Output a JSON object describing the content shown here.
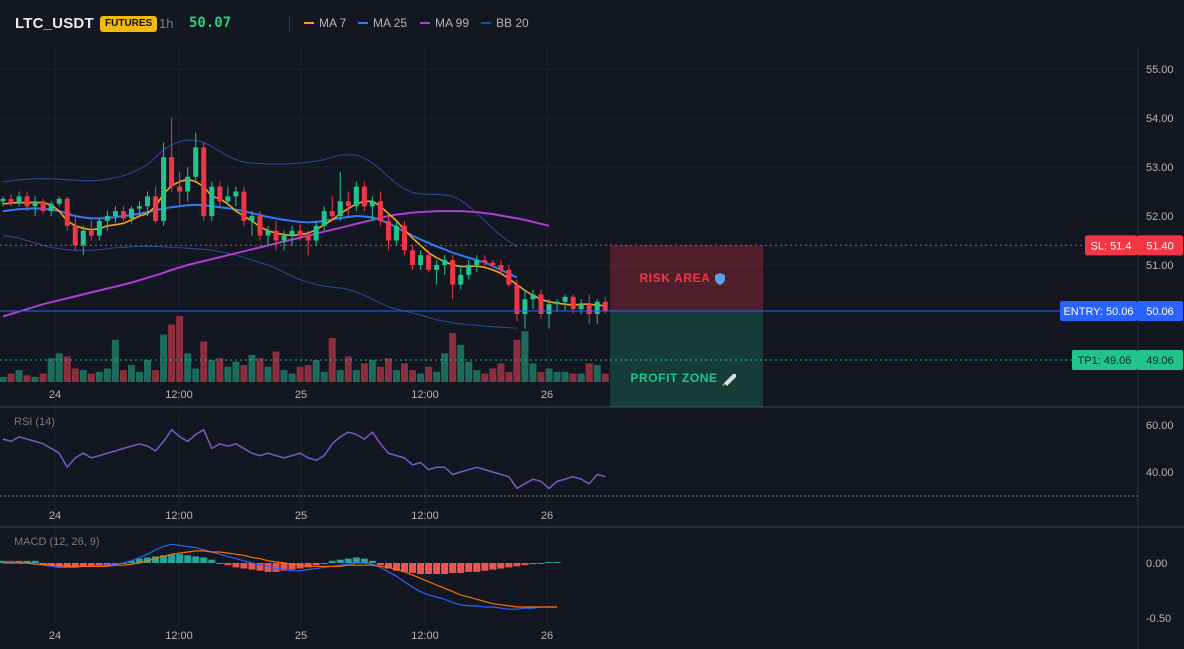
{
  "header": {
    "symbol": "LTC_USDT",
    "badge": "FUTURES",
    "timeframe": "1h",
    "last_price": "50.07",
    "legend": [
      {
        "label": "MA 7",
        "color": "#f7a21b"
      },
      {
        "label": "MA 25",
        "color": "#2f7bf5"
      },
      {
        "label": "MA 99",
        "color": "#b03dd4"
      },
      {
        "label": "BB 20",
        "color": "#2a4b9b"
      }
    ]
  },
  "colors": {
    "up": "#22c48d",
    "down": "#f23645",
    "vol_up": "#1d6b5c",
    "vol_down": "#8c2e3d",
    "grid": "#1e222d",
    "axis_text": "#b2b5be",
    "rsi": "#7e57c2",
    "macd": "#2962ff",
    "signal": "#ff6d00",
    "entry": "#2962ff",
    "sl": "#f23645",
    "tp": "#22c48d"
  },
  "chart_data": [
    {
      "type": "candlestick",
      "title": "",
      "x_ticks": [
        "24",
        "12:00",
        "25",
        "12:00",
        "26"
      ],
      "y_ticks": [
        "55.00",
        "54.00",
        "53.00",
        "52.00",
        "51.00",
        "50.00"
      ],
      "ylim": [
        49.0,
        55.5
      ],
      "candles": [
        [
          52.3,
          52.4,
          52.2,
          52.35
        ],
        [
          52.35,
          52.45,
          52.2,
          52.25
        ],
        [
          52.25,
          52.5,
          52.2,
          52.4
        ],
        [
          52.4,
          52.5,
          52.1,
          52.2
        ],
        [
          52.2,
          52.4,
          52.0,
          52.3
        ],
        [
          52.3,
          52.35,
          52.05,
          52.1
        ],
        [
          52.1,
          52.3,
          52.0,
          52.25
        ],
        [
          52.25,
          52.4,
          52.2,
          52.35
        ],
        [
          52.35,
          52.4,
          51.7,
          51.8
        ],
        [
          51.8,
          52.0,
          51.3,
          51.4
        ],
        [
          51.4,
          51.8,
          51.2,
          51.7
        ],
        [
          51.7,
          51.9,
          51.5,
          51.6
        ],
        [
          51.6,
          51.95,
          51.5,
          51.9
        ],
        [
          51.9,
          52.1,
          51.7,
          52.0
        ],
        [
          52.0,
          52.2,
          51.85,
          52.1
        ],
        [
          52.1,
          52.2,
          51.9,
          51.95
        ],
        [
          51.95,
          52.2,
          51.85,
          52.15
        ],
        [
          52.15,
          52.3,
          52.0,
          52.2
        ],
        [
          52.2,
          52.5,
          52.0,
          52.4
        ],
        [
          52.4,
          52.6,
          51.85,
          51.9
        ],
        [
          51.9,
          53.5,
          51.8,
          53.2
        ],
        [
          53.2,
          54.0,
          52.5,
          52.6
        ],
        [
          52.6,
          52.9,
          52.2,
          52.5
        ],
        [
          52.5,
          53.0,
          52.3,
          52.8
        ],
        [
          52.8,
          53.7,
          52.7,
          53.4
        ],
        [
          53.4,
          53.5,
          51.9,
          52.0
        ],
        [
          52.0,
          52.7,
          51.9,
          52.6
        ],
        [
          52.6,
          52.7,
          52.2,
          52.3
        ],
        [
          52.3,
          52.6,
          52.2,
          52.4
        ],
        [
          52.4,
          52.6,
          52.2,
          52.5
        ],
        [
          52.5,
          52.6,
          51.8,
          51.9
        ],
        [
          51.9,
          52.1,
          51.6,
          52.0
        ],
        [
          52.0,
          52.1,
          51.5,
          51.6
        ],
        [
          51.6,
          51.8,
          51.4,
          51.7
        ],
        [
          51.7,
          51.9,
          51.3,
          51.5
        ],
        [
          51.5,
          51.7,
          51.3,
          51.6
        ],
        [
          51.6,
          51.8,
          51.4,
          51.7
        ],
        [
          51.7,
          51.85,
          51.5,
          51.6
        ],
        [
          51.6,
          51.7,
          51.2,
          51.5
        ],
        [
          51.5,
          51.9,
          51.4,
          51.8
        ],
        [
          51.8,
          52.2,
          51.7,
          52.1
        ],
        [
          52.1,
          52.4,
          51.9,
          52.0
        ],
        [
          52.0,
          52.9,
          51.9,
          52.3
        ],
        [
          52.3,
          52.5,
          52.0,
          52.2
        ],
        [
          52.2,
          52.7,
          52.1,
          52.6
        ],
        [
          52.6,
          52.7,
          52.1,
          52.2
        ],
        [
          52.2,
          52.4,
          51.9,
          52.3
        ],
        [
          52.3,
          52.5,
          51.8,
          51.9
        ],
        [
          51.9,
          52.0,
          51.3,
          51.5
        ],
        [
          51.5,
          51.9,
          51.4,
          51.8
        ],
        [
          51.8,
          51.9,
          51.2,
          51.3
        ],
        [
          51.3,
          51.4,
          50.9,
          51.0
        ],
        [
          51.0,
          51.3,
          50.9,
          51.2
        ],
        [
          51.2,
          51.3,
          50.85,
          50.9
        ],
        [
          50.9,
          51.1,
          50.6,
          51.0
        ],
        [
          51.0,
          51.2,
          50.8,
          51.1
        ],
        [
          51.1,
          51.2,
          50.3,
          50.6
        ],
        [
          50.6,
          51.0,
          50.5,
          50.8
        ],
        [
          50.8,
          51.1,
          50.7,
          51.0
        ],
        [
          51.0,
          51.2,
          50.85,
          51.1
        ],
        [
          51.1,
          51.2,
          50.95,
          51.05
        ],
        [
          51.05,
          51.1,
          50.95,
          51.0
        ],
        [
          51.0,
          51.1,
          50.8,
          50.9
        ],
        [
          50.9,
          51.0,
          50.55,
          50.6
        ],
        [
          50.6,
          50.7,
          49.85,
          50.0
        ],
        [
          50.0,
          50.5,
          49.7,
          50.3
        ],
        [
          50.3,
          50.5,
          50.1,
          50.4
        ],
        [
          50.4,
          50.5,
          49.9,
          50.0
        ],
        [
          50.0,
          50.3,
          49.7,
          50.2
        ],
        [
          50.2,
          50.3,
          50.05,
          50.25
        ],
        [
          50.25,
          50.4,
          50.05,
          50.35
        ],
        [
          50.35,
          50.4,
          50.0,
          50.1
        ],
        [
          50.1,
          50.3,
          50.0,
          50.2
        ],
        [
          50.2,
          50.4,
          49.8,
          50.0
        ],
        [
          50.0,
          50.3,
          49.8,
          50.25
        ],
        [
          50.25,
          50.35,
          50.0,
          50.07
        ]
      ],
      "ma7": [
        52.25,
        52.26,
        52.28,
        52.27,
        52.28,
        52.27,
        52.23,
        52.1,
        51.9,
        51.8,
        51.75,
        51.72,
        51.74,
        51.8,
        51.82,
        51.85,
        51.92,
        52.0,
        52.05,
        52.2,
        52.45,
        52.62,
        52.7,
        52.75,
        52.7,
        52.6,
        52.4,
        52.35,
        52.25,
        52.1,
        52.0,
        51.9,
        51.78,
        51.7,
        51.65,
        51.62,
        51.6,
        51.62,
        51.65,
        51.72,
        51.82,
        51.92,
        52.05,
        52.15,
        52.25,
        52.3,
        52.3,
        52.2,
        52.05,
        51.9,
        51.72,
        51.55,
        51.4,
        51.25,
        51.15,
        51.07,
        51.0,
        50.97,
        50.97,
        50.98,
        50.95,
        50.9,
        50.83,
        50.72,
        50.6,
        50.48,
        50.38,
        50.3,
        50.25,
        50.22,
        50.2,
        50.18,
        50.2,
        50.2,
        50.18,
        50.17
      ],
      "ma25": [
        52.1,
        52.12,
        52.14,
        52.15,
        52.16,
        52.15,
        52.13,
        52.1,
        52.05,
        52.0,
        51.97,
        51.95,
        51.95,
        51.96,
        51.98,
        52.0,
        52.02,
        52.05,
        52.08,
        52.12,
        52.15,
        52.18,
        52.2,
        52.22,
        52.23,
        52.22,
        52.2,
        52.18,
        52.16,
        52.13,
        52.1,
        52.06,
        52.02,
        51.98,
        51.95,
        51.92,
        51.9,
        51.88,
        51.87,
        51.88,
        51.9,
        51.93,
        51.96,
        51.98,
        52.0,
        51.99,
        51.97,
        51.92,
        51.85,
        51.77,
        51.68,
        51.6,
        51.52,
        51.45,
        51.38,
        51.32,
        51.25,
        51.2,
        51.15,
        51.1,
        51.05,
        50.98,
        50.9,
        50.82,
        50.75
      ],
      "ma99": [
        49.95,
        50.0,
        50.05,
        50.1,
        50.15,
        50.2,
        50.24,
        50.28,
        50.32,
        50.36,
        50.4,
        50.44,
        50.48,
        50.52,
        50.56,
        50.6,
        50.64,
        50.69,
        50.74,
        50.79,
        50.84,
        50.9,
        50.95,
        51.0,
        51.04,
        51.08,
        51.12,
        51.16,
        51.2,
        51.24,
        51.28,
        51.32,
        51.36,
        51.4,
        51.44,
        51.48,
        51.52,
        51.56,
        51.6,
        51.64,
        51.68,
        51.72,
        51.76,
        51.8,
        51.84,
        51.88,
        51.92,
        51.96,
        52.0,
        52.03,
        52.05,
        52.07,
        52.08,
        52.09,
        52.1,
        52.1,
        52.1,
        52.1,
        52.09,
        52.08,
        52.06,
        52.04,
        52.01,
        51.98,
        51.95,
        51.92,
        51.88,
        51.84,
        51.8
      ],
      "bb_upper": [
        52.7,
        52.72,
        52.74,
        52.75,
        52.76,
        52.76,
        52.76,
        52.75,
        52.74,
        52.73,
        52.72,
        52.72,
        52.73,
        52.75,
        52.78,
        52.82,
        52.88,
        52.96,
        53.05,
        53.2,
        53.35,
        53.45,
        53.52,
        53.55,
        53.54,
        53.5,
        53.42,
        53.32,
        53.22,
        53.15,
        53.1,
        53.08,
        53.07,
        53.06,
        53.06,
        53.06,
        53.07,
        53.08,
        53.1,
        53.12,
        53.15,
        53.2,
        53.24,
        53.25,
        53.24,
        53.18,
        53.08,
        52.95,
        52.8,
        52.66,
        52.55,
        52.48,
        52.45,
        52.44,
        52.44,
        52.43,
        52.4,
        52.32,
        52.2,
        52.05,
        51.9,
        51.75,
        51.6,
        51.48,
        51.37
      ],
      "bb_lower": [
        51.6,
        51.58,
        51.55,
        51.5,
        51.45,
        51.4,
        51.36,
        51.33,
        51.31,
        51.3,
        51.3,
        51.3,
        51.31,
        51.33,
        51.35,
        51.36,
        51.37,
        51.38,
        51.38,
        51.38,
        51.37,
        51.36,
        51.35,
        51.34,
        51.33,
        51.32,
        51.3,
        51.27,
        51.24,
        51.2,
        51.15,
        51.1,
        51.05,
        51.0,
        50.93,
        50.85,
        50.77,
        50.7,
        50.65,
        50.6,
        50.57,
        50.55,
        50.53,
        50.5,
        50.45,
        50.38,
        50.3,
        50.22,
        50.15,
        50.1,
        50.06,
        50.02,
        49.98,
        49.93,
        49.88,
        49.85,
        49.82,
        49.8,
        49.78,
        49.77,
        49.75,
        49.74,
        49.73,
        49.72,
        49.71
      ],
      "volume": [
        0.3,
        0.5,
        0.7,
        0.4,
        0.3,
        0.5,
        1.4,
        1.7,
        1.5,
        0.8,
        0.7,
        0.5,
        0.6,
        0.8,
        2.5,
        0.7,
        1.0,
        0.6,
        1.3,
        0.7,
        2.8,
        3.4,
        3.9,
        1.7,
        0.8,
        2.4,
        1.3,
        1.4,
        0.9,
        1.2,
        1.0,
        1.6,
        1.4,
        0.9,
        1.8,
        0.7,
        0.5,
        0.9,
        1.0,
        1.3,
        0.6,
        2.6,
        0.7,
        1.5,
        0.7,
        1.1,
        1.3,
        0.9,
        1.4,
        0.7,
        1.1,
        0.7,
        0.5,
        0.9,
        0.6,
        1.7,
        2.9,
        2.2,
        1.2,
        0.7,
        0.5,
        0.8,
        1.1,
        0.6,
        2.5,
        3.0,
        1.1,
        0.6,
        0.8,
        0.6,
        0.6,
        0.5,
        0.5,
        1.1,
        1.0,
        0.5
      ]
    },
    {
      "type": "line",
      "title": "RSI (14)",
      "y_ticks": [
        "60.00",
        "40.00"
      ],
      "ylim": [
        25,
        70
      ],
      "values": [
        54,
        53,
        55,
        54,
        53,
        52,
        50,
        48,
        42,
        46,
        48,
        46,
        47,
        48,
        49,
        50,
        51,
        52,
        51,
        49,
        53,
        58,
        55,
        53,
        56,
        58,
        50,
        52,
        51,
        52,
        50,
        48,
        47,
        48,
        47,
        46,
        47,
        48,
        46,
        45,
        47,
        52,
        55,
        57,
        56,
        54,
        57,
        52,
        48,
        47,
        46,
        43,
        44,
        41,
        42,
        42,
        39,
        40,
        41,
        42,
        41,
        40,
        39,
        38,
        33,
        35,
        37,
        36,
        33,
        36,
        37,
        38,
        37,
        35,
        39,
        38
      ]
    },
    {
      "type": "macd",
      "title": "MACD (12, 26, 9)",
      "y_ticks": [
        "0.00",
        "-0.50"
      ],
      "ylim": [
        -0.55,
        0.2
      ],
      "macd": [
        0.01,
        0.01,
        0.0,
        0.0,
        -0.01,
        -0.02,
        -0.03,
        -0.04,
        -0.04,
        -0.04,
        -0.03,
        -0.03,
        -0.02,
        -0.02,
        -0.01,
        0.0,
        0.02,
        0.05,
        0.08,
        0.12,
        0.15,
        0.17,
        0.16,
        0.15,
        0.14,
        0.12,
        0.1,
        0.08,
        0.06,
        0.04,
        0.02,
        0.0,
        -0.02,
        -0.03,
        -0.05,
        -0.06,
        -0.07,
        -0.07,
        -0.06,
        -0.05,
        -0.04,
        -0.03,
        -0.02,
        -0.01,
        0.0,
        0.0,
        -0.01,
        -0.04,
        -0.08,
        -0.12,
        -0.17,
        -0.22,
        -0.26,
        -0.29,
        -0.31,
        -0.33,
        -0.36,
        -0.38,
        -0.39,
        -0.39,
        -0.4,
        -0.4,
        -0.41,
        -0.42,
        -0.42,
        -0.41,
        -0.41,
        -0.4,
        -0.4,
        -0.4
      ],
      "signal": [
        0.0,
        0.0,
        0.0,
        0.0,
        -0.01,
        -0.01,
        -0.02,
        -0.02,
        -0.03,
        -0.03,
        -0.03,
        -0.03,
        -0.03,
        -0.03,
        -0.02,
        -0.02,
        -0.01,
        0.0,
        0.02,
        0.04,
        0.06,
        0.08,
        0.09,
        0.1,
        0.11,
        0.11,
        0.1,
        0.1,
        0.09,
        0.08,
        0.07,
        0.05,
        0.04,
        0.02,
        0.01,
        0.0,
        -0.01,
        -0.02,
        -0.03,
        -0.03,
        -0.03,
        -0.03,
        -0.03,
        -0.02,
        -0.02,
        -0.02,
        -0.02,
        -0.03,
        -0.04,
        -0.06,
        -0.08,
        -0.11,
        -0.14,
        -0.17,
        -0.2,
        -0.23,
        -0.26,
        -0.29,
        -0.31,
        -0.33,
        -0.35,
        -0.37,
        -0.38,
        -0.39,
        -0.4,
        -0.4,
        -0.4,
        -0.4,
        -0.4,
        -0.4
      ],
      "hist": [
        0.02,
        0.02,
        0.02,
        0.02,
        0.02,
        0.0,
        -0.03,
        -0.04,
        -0.04,
        -0.04,
        -0.03,
        -0.03,
        -0.03,
        -0.03,
        -0.02,
        0.0,
        0.02,
        0.04,
        0.05,
        0.06,
        0.07,
        0.08,
        0.08,
        0.07,
        0.06,
        0.05,
        0.03,
        0.0,
        -0.02,
        -0.04,
        -0.05,
        -0.06,
        -0.07,
        -0.08,
        -0.08,
        -0.07,
        -0.06,
        -0.05,
        -0.04,
        -0.02,
        0.0,
        0.02,
        0.03,
        0.04,
        0.05,
        0.04,
        0.02,
        -0.02,
        -0.05,
        -0.07,
        -0.08,
        -0.09,
        -0.1,
        -0.1,
        -0.1,
        -0.1,
        -0.09,
        -0.09,
        -0.08,
        -0.08,
        -0.07,
        -0.06,
        -0.05,
        -0.04,
        -0.03,
        -0.02,
        -0.01,
        0.0,
        0.01,
        0.01
      ]
    }
  ],
  "trade": {
    "risk_label": "RISK AREA",
    "profit_label": "PROFIT ZONE",
    "sl_label": "SL: 51.4",
    "sl_price": "51.40",
    "sl_value": 51.4,
    "entry_label": "ENTRY: 50.06",
    "entry_price": "50.06",
    "entry_value": 50.06,
    "tp_label": "TP1: 49.06",
    "tp_price": "49.06",
    "tp_value": 49.06
  }
}
